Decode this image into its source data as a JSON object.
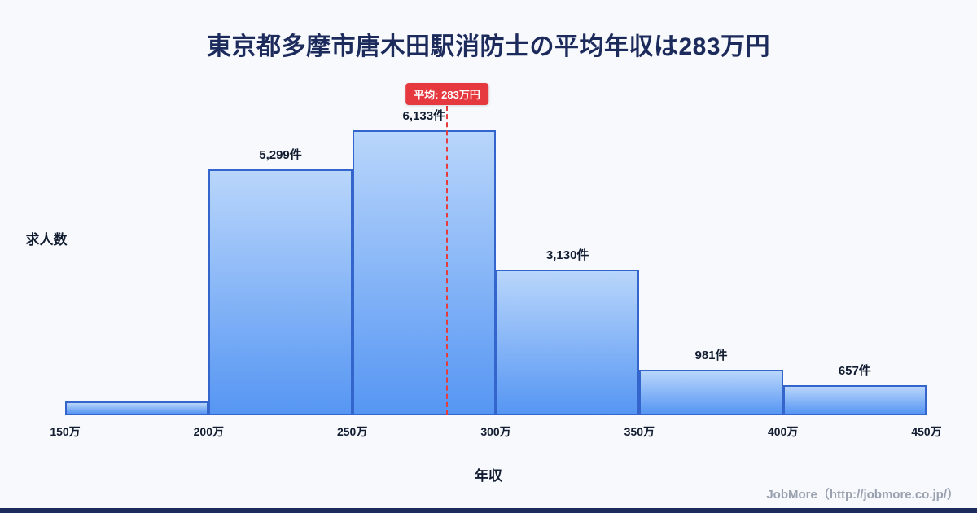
{
  "title": "東京都多摩市唐木田駅消防士の平均年収は283万円",
  "chart_data": {
    "type": "bar",
    "title": "東京都多摩市唐木田駅消防士の平均年収は283万円",
    "xlabel": "年収",
    "ylabel": "求人数",
    "x_range": [
      150,
      450
    ],
    "x_tick_labels": [
      "150万",
      "200万",
      "250万",
      "300万",
      "350万",
      "400万",
      "450万"
    ],
    "ylim": [
      0,
      6660
    ],
    "bins": [
      {
        "range": [
          150,
          200
        ],
        "value": 300,
        "label": ""
      },
      {
        "range": [
          200,
          250
        ],
        "value": 5299,
        "label": "5,299件"
      },
      {
        "range": [
          250,
          300
        ],
        "value": 6133,
        "label": "6,133件"
      },
      {
        "range": [
          300,
          350
        ],
        "value": 3130,
        "label": "3,130件"
      },
      {
        "range": [
          350,
          400
        ],
        "value": 981,
        "label": "981件"
      },
      {
        "range": [
          400,
          450
        ],
        "value": 657,
        "label": "657件"
      }
    ],
    "average": {
      "value": 283,
      "label": "平均: 283万円"
    },
    "legend": null,
    "grid": false
  },
  "footer": {
    "credit": "JobMore（http://jobmore.co.jp/）"
  },
  "colors": {
    "background": "#f7f9fd",
    "title": "#1c2b5c",
    "bar_top": "#b9d6fb",
    "bar_bottom": "#5696f3",
    "bar_border": "#3365cd",
    "average_line": "#e83c3c",
    "badge_bg": "#e5393f",
    "badge_text": "#ffffff",
    "label": "#131d31",
    "footer_text": "#9aa2af",
    "bottom_strip": "#1c2b5c"
  }
}
